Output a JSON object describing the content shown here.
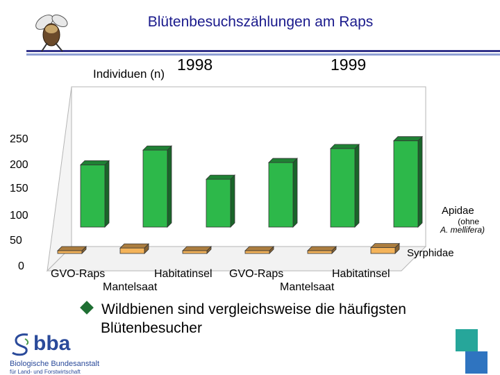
{
  "header": {
    "title": "Blütenbesuchszählungen am Raps",
    "bee_icon": "bee-icon"
  },
  "chart_data": {
    "type": "bar",
    "title": "Blütenbesuchszählungen am Raps",
    "ylabel": "Individuen (n)",
    "ylim": [
      0,
      250
    ],
    "yticks": [
      "250",
      "200",
      "150",
      "100",
      "50",
      "0"
    ],
    "groups": [
      "1998",
      "1999"
    ],
    "categories": [
      {
        "label": "GVO-Raps",
        "group": "1998"
      },
      {
        "label": "Mantelsaat",
        "group": "1998"
      },
      {
        "label": "Habitatinsel",
        "group": "1998"
      },
      {
        "label": "GVO-Raps",
        "group": "1999"
      },
      {
        "label": "Mantelsaat",
        "group": "1999"
      },
      {
        "label": "Habitatinsel",
        "group": "1999"
      }
    ],
    "series": [
      {
        "name": "Apidae",
        "note_line1": "(ohne",
        "note_line2": "A. mellifera)",
        "color": "#2db84a",
        "values": [
          160,
          198,
          123,
          166,
          202,
          222
        ]
      },
      {
        "name": "Syrphidae",
        "color": "#f4b35a",
        "values": [
          5,
          14,
          7,
          6,
          6,
          15
        ]
      }
    ],
    "grid": false,
    "legend": "right"
  },
  "bullet": {
    "line1": "Wildbienen sind vergleichsweise die häufigsten",
    "line2": "Blütenbesucher"
  },
  "logo": {
    "name": "bba",
    "sub1": "Biologische Bundesanstalt",
    "sub2": "für Land- und Forstwirtschaft"
  },
  "colors": {
    "title": "#1a1a8c",
    "accent_square_1": "#26a69a",
    "accent_square_2": "#2f74c0"
  }
}
